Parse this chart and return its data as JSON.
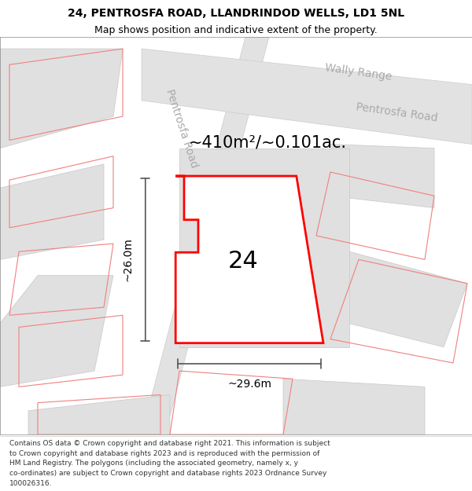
{
  "title_line1": "24, PENTROSFA ROAD, LLANDRINDOD WELLS, LD1 5NL",
  "title_line2": "Map shows position and indicative extent of the property.",
  "area_label": "~410m²/~0.101ac.",
  "number_label": "24",
  "dim_width_label": "~29.6m",
  "dim_height_label": "~26.0m",
  "map_bg_color": "#f0f0f0",
  "plot_border_color": "#ff0000",
  "dim_line_color": "#555555",
  "road_text_color": "#aaaaaa",
  "other_border_color": "#f08080",
  "title_fontsize": 10,
  "subtitle_fontsize": 9,
  "area_fontsize": 15,
  "number_fontsize": 22,
  "dim_fontsize": 10,
  "road_label_fontsize": 10,
  "footer_fontsize": 6.5,
  "footer_lines": [
    "Contains OS data © Crown copyright and database right 2021. This information is subject",
    "to Crown copyright and database rights 2023 and is reproduced with the permission of",
    "HM Land Registry. The polygons (including the associated geometry, namely x, y",
    "co-ordinates) are subject to Crown copyright and database rights 2023 Ordnance Survey",
    "100026316."
  ]
}
